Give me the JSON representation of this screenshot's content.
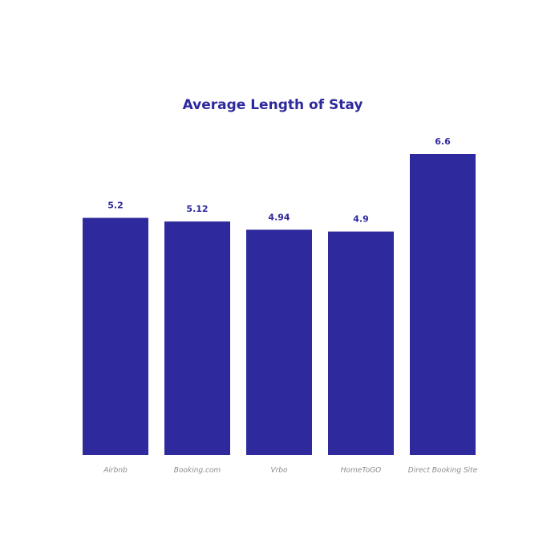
{
  "chart_data": {
    "type": "bar",
    "title": "Average Length of Stay",
    "categories": [
      "Airbnb",
      "Booking.com",
      "Vrbo",
      "HomeToGO",
      "Direct Booking Site"
    ],
    "values": [
      5.2,
      5.12,
      4.94,
      4.9,
      6.6
    ],
    "color": "#2e299c"
  }
}
